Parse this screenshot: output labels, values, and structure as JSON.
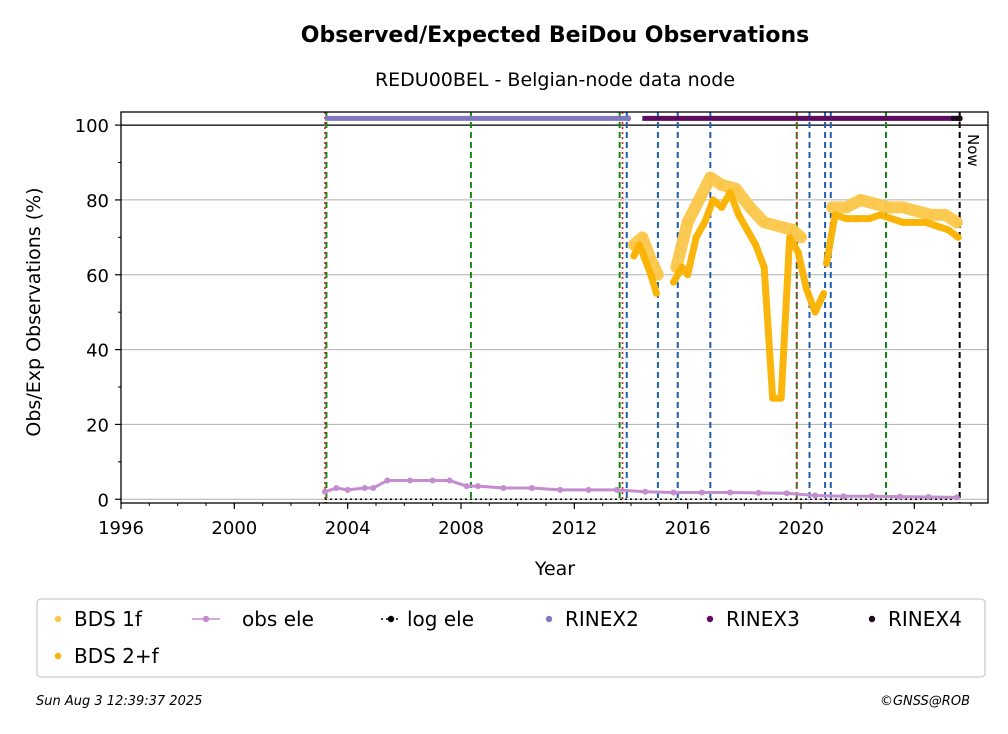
{
  "chart_data": {
    "type": "scatter",
    "title": "Observed/Expected BeiDou Observations",
    "subtitle": "REDU00BEL - Belgian-node data node",
    "xlabel": "Year",
    "ylabel": "Obs/Exp Observations (%)",
    "xlim": [
      1996,
      2026.6
    ],
    "ylim": [
      -1,
      103.5
    ],
    "x_ticks": [
      1996,
      2000,
      2004,
      2008,
      2012,
      2016,
      2020,
      2024
    ],
    "y_ticks": [
      0,
      20,
      40,
      60,
      80,
      100
    ],
    "grid": "horizontal",
    "now_label": "Now",
    "now_year": 2025.6,
    "reference_line_y": 100,
    "green_event_lines": [
      2003.25,
      2008.35,
      2013.6,
      2019.85,
      2023.0
    ],
    "red_event_lines": [
      2003.2,
      2013.7,
      2019.85
    ],
    "blue_event_lines": [
      2013.85,
      2014.95,
      2015.65,
      2016.8,
      2020.3,
      2020.85,
      2021.05
    ],
    "rinex_bars": [
      {
        "name": "RINEX2",
        "from": 2003.2,
        "to": 2013.9,
        "y": 101.8,
        "color": "#8177bd"
      },
      {
        "name": "RINEX3",
        "from": 2014.4,
        "to": 2025.6,
        "y": 101.8,
        "color": "#5d0a5f"
      },
      {
        "name": "RINEX4",
        "from": 2025.3,
        "to": 2025.6,
        "y": 101.8,
        "color": "#1a0a1a"
      }
    ],
    "series": [
      {
        "name": "BDS 1f",
        "color": "#fbc74a",
        "segments": [
          {
            "x": [
              2014.1,
              2014.4,
              2014.7,
              2014.95
            ],
            "y": [
              68,
              70,
              64,
              60
            ]
          },
          {
            "x": [
              2015.6,
              2016.0,
              2016.4,
              2016.8,
              2017.2,
              2017.7,
              2018.2,
              2018.7,
              2019.2,
              2019.7,
              2020.0
            ],
            "y": [
              62,
              74,
              80,
              86,
              84,
              83,
              78,
              74,
              73,
              72,
              70
            ]
          },
          {
            "x": [
              2021.1,
              2021.6,
              2022.1,
              2022.6,
              2023.1,
              2023.6,
              2024.1,
              2024.6,
              2025.1,
              2025.5
            ],
            "y": [
              78,
              78,
              80,
              79,
              78,
              78,
              77,
              76,
              76,
              74
            ]
          }
        ]
      },
      {
        "name": "BDS 2+f",
        "color": "#fbb200",
        "segments": [
          {
            "x": [
              2014.1,
              2014.3,
              2014.5,
              2014.7,
              2014.9
            ],
            "y": [
              65,
              68,
              64,
              60,
              55
            ]
          },
          {
            "x": [
              2015.5,
              2015.8,
              2016.0,
              2016.3,
              2016.6,
              2016.9,
              2017.2,
              2017.5,
              2017.8,
              2018.1,
              2018.4,
              2018.7,
              2019.0,
              2019.3,
              2019.6,
              2019.9,
              2020.2,
              2020.5,
              2020.8
            ],
            "y": [
              58,
              62,
              60,
              70,
              74,
              80,
              78,
              82,
              76,
              72,
              68,
              62,
              27,
              27,
              70,
              66,
              56,
              50,
              55
            ]
          },
          {
            "x": [
              2020.9,
              2021.2,
              2021.6,
              2022.0,
              2022.4,
              2022.8,
              2023.2,
              2023.6,
              2024.0,
              2024.4,
              2024.8,
              2025.2,
              2025.55
            ],
            "y": [
              63,
              76,
              75,
              75,
              75,
              76,
              75,
              74,
              74,
              74,
              73,
              72,
              70
            ]
          }
        ]
      },
      {
        "name": "obs ele",
        "color": "#c38dd0",
        "x": [
          2003.2,
          2003.6,
          2004.0,
          2004.6,
          2004.9,
          2005.4,
          2006.2,
          2007.0,
          2007.6,
          2008.2,
          2008.6,
          2009.5,
          2010.5,
          2011.5,
          2012.5,
          2013.5,
          2014.5,
          2015.5,
          2016.5,
          2017.5,
          2018.5,
          2019.5,
          2020.5,
          2021.5,
          2022.5,
          2023.5,
          2024.5,
          2025.5
        ],
        "y": [
          2,
          3,
          2.5,
          3,
          3,
          5,
          5,
          5,
          5,
          3.5,
          3.5,
          3,
          3,
          2.5,
          2.5,
          2.5,
          2,
          1.8,
          1.8,
          1.8,
          1.7,
          1.6,
          1,
          0.8,
          0.8,
          0.7,
          0.6,
          0.5
        ]
      },
      {
        "name": "log ele",
        "color": "#000000",
        "x": [
          2003.2,
          2025.6
        ],
        "y": [
          0,
          0
        ]
      }
    ]
  },
  "legend": {
    "items": [
      "BDS 1f",
      "obs ele",
      "log ele",
      "RINEX2",
      "RINEX3",
      "RINEX4",
      "BDS 2+f"
    ]
  },
  "footer": {
    "timestamp": "Sun Aug  3 12:39:37 2025",
    "credit": "©GNSS@ROB"
  }
}
